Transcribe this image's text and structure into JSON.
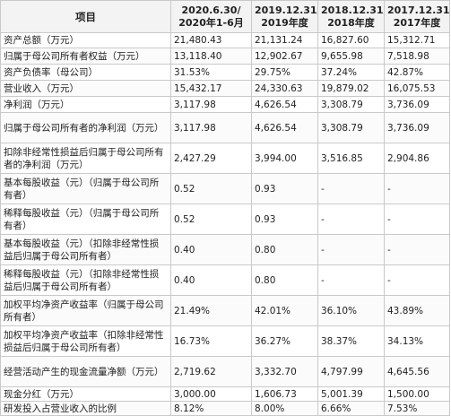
{
  "table": {
    "columns": [
      {
        "line1": "项目",
        "line2": ""
      },
      {
        "line1": "2020.6.30/",
        "line2": "2020年1-6月"
      },
      {
        "line1": "2019.12.31/",
        "line2": "2019年度"
      },
      {
        "line1": "2018.12.31/",
        "line2": "2018年度"
      },
      {
        "line1": "2017.12.31/",
        "line2": "2017年度"
      }
    ],
    "rows": [
      {
        "label": "资产总额（万元）",
        "values": [
          "21,480.43",
          "21,131.24",
          "16,827.60",
          "15,312.71"
        ]
      },
      {
        "label": "归属于母公司所有者权益（万元）",
        "values": [
          "13,118.40",
          "12,902.67",
          "9,655.98",
          "7,518.98"
        ]
      },
      {
        "label": "资产负债率（母公司）",
        "values": [
          "31.53%",
          "29.75%",
          "37.24%",
          "42.87%"
        ]
      },
      {
        "label": "营业收入（万元）",
        "values": [
          "15,432.17",
          "24,330.63",
          "19,879.02",
          "16,075.53"
        ]
      },
      {
        "label": "净利润（万元）",
        "values": [
          "3,117.98",
          "4,626.54",
          "3,308.79",
          "3,736.09"
        ]
      },
      {
        "label": "归属于母公司所有者的净利润（万元）",
        "values": [
          "3,117.98",
          "4,626.54",
          "3,308.79",
          "3,736.09"
        ]
      },
      {
        "label": "扣除非经常性损益后归属于母公司所有者的净利润（万元）",
        "values": [
          "2,427.29",
          "3,994.00",
          "3,516.85",
          "2,904.86"
        ]
      },
      {
        "label": "基本每股收益（元）（归属于母公司所有者）",
        "values": [
          "0.52",
          "0.93",
          "-",
          "-"
        ]
      },
      {
        "label": "稀释每股收益（元）（归属于母公司所有者）",
        "values": [
          "0.52",
          "0.93",
          "-",
          "-"
        ]
      },
      {
        "label": "基本每股收益（元）（扣除非经常性损益后归属于母公司所有者）",
        "values": [
          "0.40",
          "0.80",
          "-",
          "-"
        ]
      },
      {
        "label": "稀释每股收益（元）（扣除非经常性损益后归属于母公司所有者）",
        "values": [
          "0.40",
          "0.80",
          "-",
          "-"
        ]
      },
      {
        "label": "加权平均净资产收益率（归属于母公司所有者）",
        "values": [
          "21.49%",
          "42.01%",
          "36.10%",
          "43.89%"
        ]
      },
      {
        "label": "加权平均净资产收益率（扣除非经常性损益后归属于母公司所有者）",
        "values": [
          "16.73%",
          "36.27%",
          "38.37%",
          "34.13%"
        ]
      },
      {
        "label": "经营活动产生的现金流量净额（万元）",
        "values": [
          "2,719.62",
          "3,332.70",
          "4,797.99",
          "4,645.56"
        ]
      },
      {
        "label": "现金分红（万元）",
        "values": [
          "3,000.00",
          "1,606.73",
          "5,001.39",
          "1,500.00"
        ]
      },
      {
        "label": "研发投入占营业收入的比例",
        "values": [
          "8.12%",
          "8.00%",
          "6.66%",
          "7.53%"
        ]
      }
    ]
  }
}
